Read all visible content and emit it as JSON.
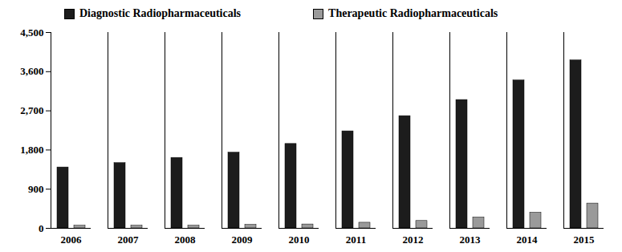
{
  "chart_data": {
    "type": "bar",
    "categories": [
      "2006",
      "2007",
      "2008",
      "2009",
      "2010",
      "2011",
      "2012",
      "2013",
      "2014",
      "2015"
    ],
    "series": [
      {
        "name": "Diagnostic Radiopharmaceuticals",
        "color": "#1c1c1c",
        "values": [
          1400,
          1500,
          1620,
          1740,
          1940,
          2230,
          2580,
          2950,
          3400,
          3860
        ]
      },
      {
        "name": "Therapeutic Radiopharmaceuticals",
        "color": "#9a9a9a",
        "values": [
          60,
          60,
          60,
          80,
          90,
          130,
          170,
          250,
          360,
          570
        ]
      }
    ],
    "ylim": [
      0,
      4500
    ],
    "yticks": [
      0,
      900,
      1800,
      2700,
      3600,
      4500
    ],
    "grid": false,
    "legend": "top"
  }
}
